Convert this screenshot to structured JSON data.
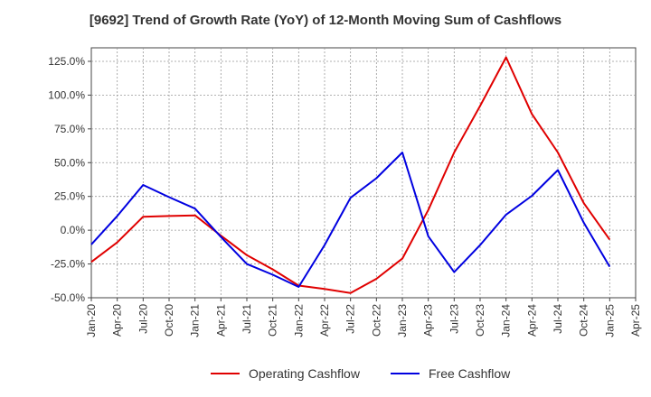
{
  "chart_data": {
    "type": "line",
    "title": "[9692]  Trend of Growth Rate (YoY) of 12-Month Moving Sum of Cashflows",
    "xlabel": "",
    "ylabel": "",
    "ylim": [
      -50,
      135
    ],
    "y_ticks": [
      -50,
      -25,
      0,
      25,
      50,
      75,
      100,
      125
    ],
    "y_tick_labels": [
      "-50.0%",
      "-25.0%",
      "0.0%",
      "25.0%",
      "50.0%",
      "75.0%",
      "100.0%",
      "125.0%"
    ],
    "x_tick_labels": [
      "Jan-20",
      "Apr-20",
      "Jul-20",
      "Oct-20",
      "Jan-21",
      "Apr-21",
      "Jul-21",
      "Oct-21",
      "Jan-22",
      "Apr-22",
      "Jul-22",
      "Oct-22",
      "Jan-23",
      "Apr-23",
      "Jul-23",
      "Oct-23",
      "Jan-24",
      "Apr-24",
      "Jul-24",
      "Oct-24",
      "Jan-25",
      "Apr-25"
    ],
    "grid": true,
    "legend_position": "bottom-center",
    "series": [
      {
        "name": "Operating Cashflow",
        "color": "#e00000",
        "values": [
          -23.5,
          -9.0,
          10.0,
          10.5,
          11.0,
          -4.0,
          -18.5,
          -29.0,
          -41.0,
          -43.5,
          -46.5,
          -36.0,
          -21.0,
          15.0,
          57.5,
          92.0,
          128.0,
          86.0,
          57.5,
          20.0,
          -7.0
        ]
      },
      {
        "name": "Free Cashflow",
        "color": "#0000e0",
        "values": [
          -10.5,
          10.5,
          33.5,
          24.5,
          16.0,
          -5.0,
          -25.0,
          -33.0,
          -42.0,
          -11.0,
          24.0,
          38.5,
          57.5,
          -4.5,
          -31.0,
          -11.0,
          11.5,
          25.5,
          44.5,
          5.5,
          -27.0
        ]
      }
    ]
  }
}
